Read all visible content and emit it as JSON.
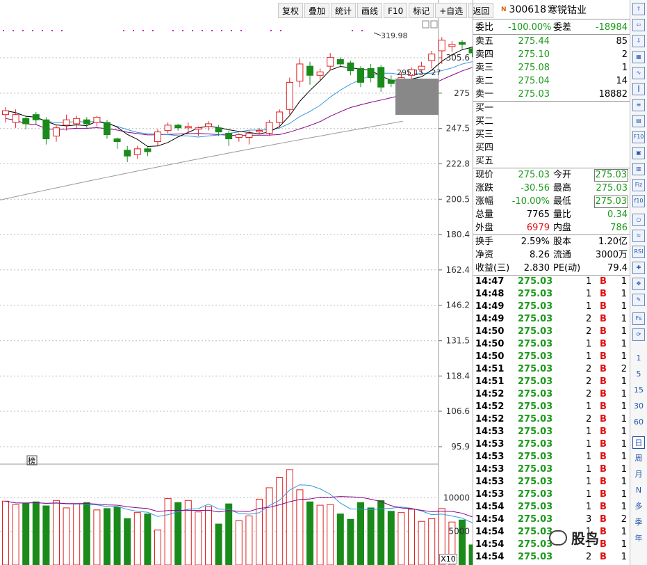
{
  "toolbar": {
    "buttons": [
      "复权",
      "叠加",
      "统计",
      "画线",
      "F10",
      "标记",
      "+自选",
      "返回"
    ]
  },
  "stock": {
    "badge": "N",
    "code": "300618",
    "name": "寒锐钴业"
  },
  "order_book": {
    "wei_bi_label": "委比",
    "wei_bi": "-100.00%",
    "wei_cha_label": "委差",
    "wei_cha": "-18984",
    "sells": [
      {
        "label": "卖五",
        "price": "275.44",
        "vol": "85"
      },
      {
        "label": "卖四",
        "price": "275.10",
        "vol": "2"
      },
      {
        "label": "卖三",
        "price": "275.08",
        "vol": "1"
      },
      {
        "label": "卖二",
        "price": "275.04",
        "vol": "14"
      },
      {
        "label": "卖一",
        "price": "275.03",
        "vol": "18882"
      }
    ],
    "buys": [
      {
        "label": "买一"
      },
      {
        "label": "买二"
      },
      {
        "label": "买三"
      },
      {
        "label": "买四"
      },
      {
        "label": "买五"
      }
    ]
  },
  "quote": {
    "rows": [
      {
        "l1": "现价",
        "v1": "275.03",
        "l2": "今开",
        "v2": "275.03"
      },
      {
        "l1": "涨跌",
        "v1": "-30.56",
        "l2": "最高",
        "v2": "275.03"
      },
      {
        "l1": "涨幅",
        "v1": "-10.00%",
        "l2": "最低",
        "v2": "275.03"
      },
      {
        "l1": "总量",
        "v1": "7765",
        "l2": "量比",
        "v2": "0.34"
      },
      {
        "l1": "外盘",
        "v1": "6979",
        "l2": "内盘",
        "v2": "786"
      }
    ]
  },
  "stats": {
    "rows": [
      {
        "l1": "换手",
        "v1": "2.59%",
        "l2": "股本",
        "v2": "1.20亿"
      },
      {
        "l1": "净资",
        "v1": "8.26",
        "l2": "流通",
        "v2": "3000万"
      },
      {
        "l1": "收益(三)",
        "v1": "2.830",
        "l2": "PE(动)",
        "v2": "79.4"
      }
    ]
  },
  "ticks": [
    {
      "time": "14:47",
      "price": "275.03",
      "vol": "1",
      "side": "B",
      "n": "1"
    },
    {
      "time": "14:48",
      "price": "275.03",
      "vol": "1",
      "side": "B",
      "n": "1"
    },
    {
      "time": "14:49",
      "price": "275.03",
      "vol": "1",
      "side": "B",
      "n": "1"
    },
    {
      "time": "14:49",
      "price": "275.03",
      "vol": "2",
      "side": "B",
      "n": "1"
    },
    {
      "time": "14:50",
      "price": "275.03",
      "vol": "2",
      "side": "B",
      "n": "1"
    },
    {
      "time": "14:50",
      "price": "275.03",
      "vol": "1",
      "side": "B",
      "n": "1"
    },
    {
      "time": "14:50",
      "price": "275.03",
      "vol": "1",
      "side": "B",
      "n": "1"
    },
    {
      "time": "14:51",
      "price": "275.03",
      "vol": "2",
      "side": "B",
      "n": "2"
    },
    {
      "time": "14:51",
      "price": "275.03",
      "vol": "2",
      "side": "B",
      "n": "1"
    },
    {
      "time": "14:52",
      "price": "275.03",
      "vol": "2",
      "side": "B",
      "n": "1"
    },
    {
      "time": "14:52",
      "price": "275.03",
      "vol": "1",
      "side": "B",
      "n": "1"
    },
    {
      "time": "14:52",
      "price": "275.03",
      "vol": "2",
      "side": "B",
      "n": "1"
    },
    {
      "time": "14:53",
      "price": "275.03",
      "vol": "1",
      "side": "B",
      "n": "1"
    },
    {
      "time": "14:53",
      "price": "275.03",
      "vol": "1",
      "side": "B",
      "n": "1"
    },
    {
      "time": "14:53",
      "price": "275.03",
      "vol": "1",
      "side": "B",
      "n": "1"
    },
    {
      "time": "14:53",
      "price": "275.03",
      "vol": "1",
      "side": "B",
      "n": "1"
    },
    {
      "time": "14:53",
      "price": "275.03",
      "vol": "1",
      "side": "B",
      "n": "1"
    },
    {
      "time": "14:53",
      "price": "275.03",
      "vol": "1",
      "side": "B",
      "n": "1"
    },
    {
      "time": "14:54",
      "price": "275.03",
      "vol": "1",
      "side": "B",
      "n": "1"
    },
    {
      "time": "14:54",
      "price": "275.03",
      "vol": "3",
      "side": "B",
      "n": "2"
    },
    {
      "time": "14:54",
      "price": "275.03",
      "vol": "1",
      "side": "B",
      "n": "1"
    },
    {
      "time": "14:54",
      "price": "275.03",
      "vol": "1",
      "side": "B",
      "n": "1"
    },
    {
      "time": "14:54",
      "price": "275.03",
      "vol": "2",
      "side": "B",
      "n": "1"
    }
  ],
  "chart_data": {
    "type": "candlestick",
    "price_axis": {
      "ticks": [
        305.6,
        275.0,
        247.5,
        222.8,
        200.5,
        180.4,
        162.4,
        146.2,
        131.5,
        118.4,
        106.6,
        95.9
      ],
      "scale": "log"
    },
    "volume_axis": {
      "ticks": [
        10000,
        5000
      ],
      "multiplier_label": "X10"
    },
    "annotations": {
      "high_label": "319.98",
      "price_label": "295.15 - 27",
      "marker": "榜"
    },
    "colors": {
      "up": "#e02020",
      "down": "#1a8a1a",
      "ma5": "#000000",
      "ma10": "#3399dd",
      "ma20": "#880088",
      "ma60": "#999999"
    }
  },
  "side_tabs": {
    "periods": [
      "1",
      "5",
      "15",
      "30",
      "60"
    ],
    "cycles": [
      "日",
      "周",
      "月",
      "N",
      "多",
      "季",
      "年"
    ],
    "icons": [
      "up-arrow-icon",
      "left-arrow-icon",
      "down-arrow-icon",
      "grid-icon",
      "line-chart-icon",
      "candle-icon",
      "list-icon",
      "doc-icon",
      "f10-icon",
      "cube-icon",
      "book-icon",
      "fiz-icon",
      "f10b-icon",
      "circle-icon",
      "wave-icon",
      "rsi-icon",
      "cross-icon",
      "move-icon",
      "pencil-icon",
      "fs-icon",
      "refresh-icon"
    ],
    "rsi_label": "RSI",
    "fs_label": "Fs"
  },
  "watermark": {
    "text": "股鸟"
  }
}
